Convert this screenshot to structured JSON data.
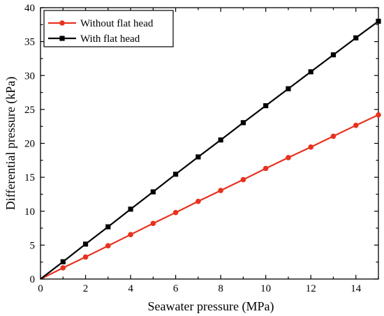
{
  "chart_data": {
    "type": "line",
    "xlabel": "Seawater pressure (MPa)",
    "ylabel": "Differential pressure (kPa)",
    "xlim": [
      0,
      15
    ],
    "ylim": [
      0,
      40
    ],
    "xticks": [
      0,
      2,
      4,
      6,
      8,
      10,
      12,
      14
    ],
    "yticks": [
      0,
      5,
      10,
      15,
      20,
      25,
      30,
      35,
      40
    ],
    "grid": false,
    "legend_position": "top-left",
    "series": [
      {
        "name": "Without flat head",
        "color": "#e8321e",
        "marker": "circle",
        "x": [
          0,
          1,
          2,
          3,
          4,
          5,
          6,
          7,
          8,
          9,
          10,
          11,
          12,
          13,
          14,
          15
        ],
        "y": [
          0,
          1.65,
          3.25,
          4.9,
          6.55,
          8.2,
          9.8,
          11.45,
          13.05,
          14.65,
          16.3,
          17.9,
          19.45,
          21.05,
          22.65,
          24.2
        ]
      },
      {
        "name": "With flat head",
        "color": "#000000",
        "marker": "square",
        "x": [
          0,
          1,
          2,
          3,
          4,
          5,
          6,
          7,
          8,
          9,
          10,
          11,
          12,
          13,
          14,
          15
        ],
        "y": [
          0,
          2.55,
          5.15,
          7.7,
          10.3,
          12.85,
          15.45,
          18.0,
          20.5,
          23.05,
          25.55,
          28.05,
          30.55,
          33.05,
          35.55,
          38.0
        ]
      }
    ]
  }
}
